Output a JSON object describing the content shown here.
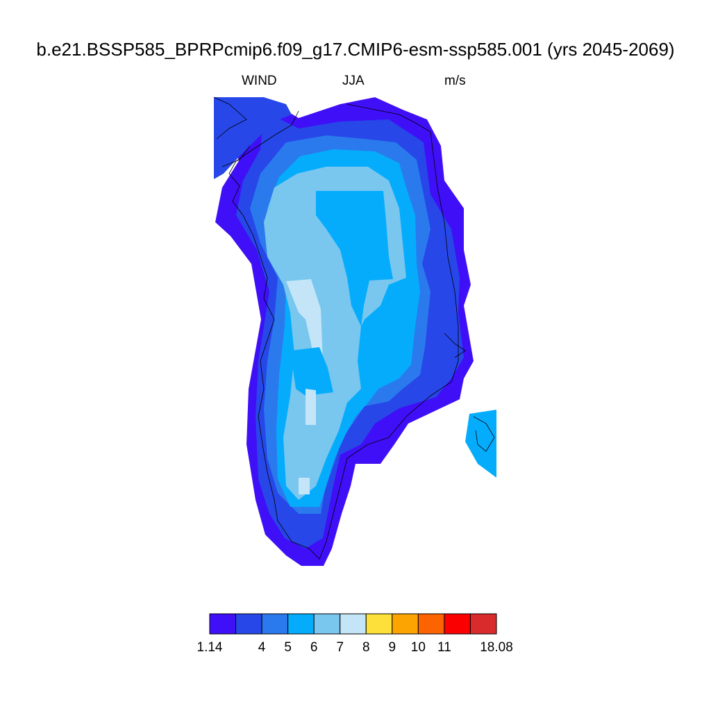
{
  "title": "b.e21.BSSP585_BPRPcmip6.f09_g17.CMIP6-esm-ssp585.001 (yrs 2045-2069)",
  "left_label": "WIND",
  "center_label": "JJA",
  "right_label": "m/s",
  "colorbar": {
    "colors": [
      "#3f0ff7",
      "#2747e8",
      "#2a7aee",
      "#05acfc",
      "#79c6ef",
      "#c3e5f7",
      "#fde13a",
      "#fca402",
      "#fb6400",
      "#fa0000",
      "#d92b2b"
    ],
    "tick_labels": [
      "1.14",
      "4",
      "5",
      "6",
      "7",
      "8",
      "9",
      "10",
      "11",
      "18.08"
    ],
    "tick_values": [
      1.14,
      4,
      5,
      6,
      7,
      8,
      9,
      10,
      11,
      18.08
    ]
  },
  "map_regions": [
    {
      "name": "greenland-coast-ring",
      "level": 1
    },
    {
      "name": "greenland-outer-margin",
      "level": 2
    },
    {
      "name": "greenland-slope",
      "level": 3
    },
    {
      "name": "greenland-interior",
      "level": 4
    },
    {
      "name": "greenland-ice-divide",
      "level": 5
    },
    {
      "name": "greenland-max-wind-strip",
      "level": 6
    },
    {
      "name": "ellesmere-corner",
      "level": 2
    },
    {
      "name": "iceland-fragment",
      "level": 4
    }
  ]
}
